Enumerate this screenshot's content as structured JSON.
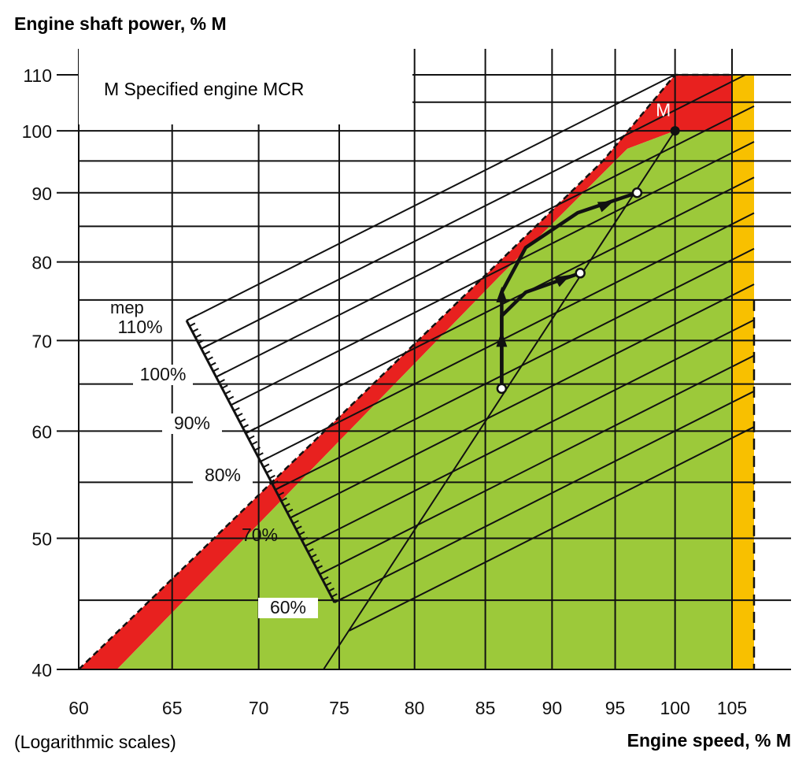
{
  "chart_data": {
    "type": "line",
    "title": "Engine shaft power, % M",
    "xlabel": "Engine speed, % M",
    "ylabel": "Engine shaft power, % M",
    "footnote": "(Logarithmic scales)",
    "legend_text": "M  Specified engine MCR",
    "scale": "log-log",
    "xlim": [
      60,
      107
    ],
    "ylim": [
      40,
      110
    ],
    "x_ticks": [
      60,
      65,
      70,
      75,
      80,
      85,
      90,
      95,
      100,
      105
    ],
    "y_ticks": [
      40,
      50,
      60,
      70,
      80,
      90,
      100,
      110
    ],
    "x_tick_labels": [
      "60",
      "65",
      "70",
      "75",
      "80",
      "85",
      "90",
      "95",
      "100",
      "105"
    ],
    "y_tick_labels": [
      "40",
      "50",
      "60",
      "70",
      "80",
      "90",
      "100",
      "110"
    ],
    "mep_label": "mep",
    "mep_labels": [
      "110%",
      "100%",
      "90%",
      "80%",
      "70%",
      "60%"
    ],
    "mep_values": [
      1.1,
      1.0,
      0.9,
      0.8,
      0.7,
      0.6
    ],
    "marker_label": "M",
    "mcr_point": [
      100,
      100
    ],
    "regions": [
      {
        "name": "overload-limit",
        "color": "#e8211f",
        "points": [
          [
            60,
            40
          ],
          [
            86,
            80
          ],
          [
            94,
            95
          ],
          [
            100,
            110
          ],
          [
            105,
            110
          ],
          [
            105,
            100
          ],
          [
            100,
            100
          ],
          [
            96,
            97
          ],
          [
            86,
            78
          ],
          [
            62,
            40
          ]
        ]
      },
      {
        "name": "operating-area",
        "color": "#9cc93a",
        "points": [
          [
            62,
            40
          ],
          [
            86,
            78
          ],
          [
            96,
            97
          ],
          [
            100,
            100
          ],
          [
            105,
            100
          ],
          [
            105,
            40
          ]
        ]
      },
      {
        "name": "speed-limit-band",
        "color": "#f8c000",
        "points": [
          [
            105,
            40
          ],
          [
            107,
            40
          ],
          [
            107,
            110
          ],
          [
            105,
            110
          ]
        ]
      }
    ],
    "series": [
      {
        "name": "propeller-curve",
        "values": [
          [
            74,
            40
          ],
          [
            100,
            100
          ]
        ]
      },
      {
        "name": "acceleration-path-1",
        "values": [
          [
            86.2,
            64.5
          ],
          [
            86.2,
            76
          ],
          [
            88,
            82
          ],
          [
            92,
            87
          ],
          [
            96.8,
            90
          ]
        ]
      },
      {
        "name": "acceleration-path-2",
        "values": [
          [
            86.2,
            64.5
          ],
          [
            86.2,
            73
          ],
          [
            88,
            76
          ],
          [
            92.2,
            78.5
          ]
        ]
      }
    ]
  }
}
